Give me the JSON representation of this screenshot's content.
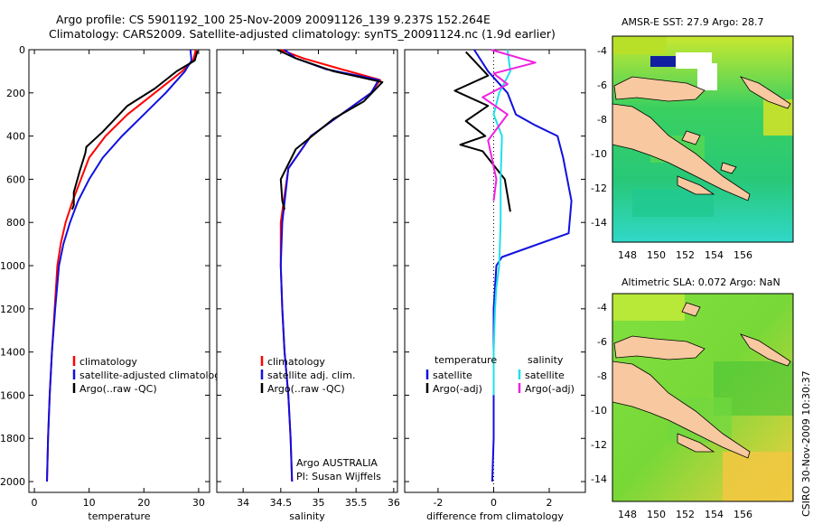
{
  "title": {
    "line1": "Argo profile: CS 5901192_100 25-Nov-2009 20091126_139 9.237S 152.264E",
    "line2": "Climatology: CARS2009. Satellite-adjusted climatology: synTS_20091124.nc (1.9d earlier)"
  },
  "colors": {
    "clim": "#ff0000",
    "sat": "#1010e0",
    "argo": "#000000",
    "sal_sat": "#20e0e8",
    "sal_argo": "#f020e0"
  },
  "chart_data": [
    {
      "type": "line",
      "id": "temperature",
      "xlabel": "temperature",
      "xlim": [
        -1,
        32
      ],
      "ylim": [
        2050,
        0
      ],
      "xticks": [
        "0",
        "10",
        "20",
        "30"
      ],
      "xtick_values": [
        0,
        10,
        20,
        30
      ],
      "yticks": [
        "0",
        "200",
        "400",
        "600",
        "800",
        "1000",
        "1200",
        "1400",
        "1600",
        "1800",
        "2000"
      ],
      "ytick_values": [
        0,
        200,
        400,
        600,
        800,
        1000,
        1200,
        1400,
        1600,
        1800,
        2000
      ],
      "legend": [
        "climatology",
        "satellite-adjusted climatology",
        "Argo(..raw -QC)"
      ],
      "series": [
        {
          "name": "climatology",
          "color": "clim",
          "x": [
            29.5,
            29,
            27,
            22,
            17,
            13,
            10,
            8.5,
            7,
            5.7,
            4.8,
            4.2,
            3.7,
            3.2,
            2.8,
            2.5,
            2.3
          ],
          "y": [
            0,
            50,
            100,
            200,
            300,
            400,
            500,
            600,
            700,
            800,
            900,
            1000,
            1200,
            1400,
            1600,
            1800,
            2000
          ]
        },
        {
          "name": "satellite-adjusted climatology",
          "color": "sat",
          "x": [
            28.5,
            28.7,
            27.5,
            24,
            20,
            16,
            12.5,
            10,
            8,
            6.5,
            5.3,
            4.5,
            3.8,
            3.2,
            2.8,
            2.5,
            2.3
          ],
          "y": [
            0,
            50,
            100,
            200,
            300,
            400,
            500,
            600,
            700,
            800,
            900,
            1000,
            1200,
            1400,
            1600,
            1800,
            2000
          ]
        },
        {
          "name": "Argo(..raw -QC)",
          "color": "argo",
          "x": [
            29.8,
            29.3,
            26,
            22,
            17,
            12.5,
            9.5,
            9.3,
            8.3,
            7.2,
            7.2,
            6.9
          ],
          "y": [
            5,
            50,
            100,
            180,
            260,
            380,
            450,
            480,
            560,
            660,
            720,
            740
          ]
        }
      ]
    },
    {
      "type": "line",
      "id": "salinity",
      "xlabel": "salinity",
      "xlim": [
        33.65,
        36.05
      ],
      "ylim": [
        2050,
        0
      ],
      "xticks": [
        "34",
        "34.5",
        "35",
        "35.5",
        "36"
      ],
      "xtick_values": [
        34,
        34.5,
        35,
        35.5,
        36
      ],
      "yticks": [],
      "ytick_values": [],
      "legend": [
        "climatology",
        "satellite adj. clim.",
        "Argo(..raw -QC)"
      ],
      "annotation": [
        "Argo AUSTRALIA",
        "PI: Susan Wijffels"
      ],
      "series": [
        {
          "name": "climatology",
          "color": "clim",
          "x": [
            34.5,
            34.8,
            35.3,
            35.82,
            35.7,
            35.3,
            34.9,
            34.6,
            34.5,
            34.5,
            34.52,
            34.55,
            34.6,
            34.63,
            34.65
          ],
          "y": [
            0,
            40,
            90,
            140,
            200,
            300,
            400,
            550,
            800,
            1000,
            1200,
            1400,
            1600,
            1800,
            2000
          ]
        },
        {
          "name": "satellite adj. clim.",
          "color": "sat",
          "x": [
            34.55,
            34.7,
            35.1,
            35.8,
            35.7,
            35.3,
            34.9,
            34.6,
            34.52,
            34.5,
            34.52,
            34.55,
            34.6,
            34.63,
            34.65
          ],
          "y": [
            0,
            40,
            90,
            140,
            200,
            300,
            400,
            550,
            800,
            1000,
            1200,
            1400,
            1600,
            1800,
            2000
          ]
        },
        {
          "name": "Argo(..raw -QC)",
          "color": "argo",
          "x": [
            34.45,
            34.7,
            35.2,
            35.85,
            35.6,
            35.2,
            34.7,
            34.5,
            34.52,
            34.55
          ],
          "y": [
            0,
            40,
            100,
            150,
            240,
            320,
            460,
            600,
            700,
            740
          ]
        }
      ]
    },
    {
      "type": "line",
      "id": "difference",
      "xlabel": "difference from climatology",
      "xlim": [
        -3.2,
        3.3
      ],
      "ylim": [
        2050,
        0
      ],
      "xticks": [
        "-2",
        "0",
        "2"
      ],
      "xtick_values": [
        -2,
        0,
        2
      ],
      "yticks": [],
      "ytick_values": [],
      "legend_left_title": "temperature",
      "legend_right_title": "salinity",
      "legend_left": [
        "satellite",
        "Argo(-adj)"
      ],
      "legend_right": [
        "satellite",
        "Argo(-adj)"
      ],
      "series": [
        {
          "name": "temperature satellite",
          "color": "sat",
          "x": [
            -0.7,
            -0.2,
            0.5,
            0.8,
            1.5,
            2.3,
            2.5,
            2.8,
            2.7,
            0.3,
            0.1,
            0.0,
            0.0,
            0.0,
            -0.05
          ],
          "y": [
            0,
            100,
            200,
            300,
            350,
            400,
            500,
            700,
            850,
            960,
            1000,
            1200,
            1400,
            1800,
            2000
          ]
        },
        {
          "name": "temperature Argo(-adj)",
          "color": "argo",
          "x": [
            -1.0,
            -0.2,
            -1.4,
            -0.2,
            -1.0,
            -0.3,
            -1.2,
            -0.4,
            0.4,
            0.6
          ],
          "y": [
            10,
            120,
            190,
            260,
            330,
            400,
            440,
            470,
            600,
            750
          ]
        },
        {
          "name": "salinity satellite",
          "color": "sal_sat",
          "x": [
            0.5,
            0.6,
            0.2,
            0.0,
            0.3,
            0.25,
            0.25,
            0.2,
            0.1,
            0.05,
            0.0,
            0.0
          ],
          "y": [
            0,
            100,
            200,
            300,
            400,
            600,
            800,
            1000,
            1100,
            1200,
            1400,
            1600
          ]
        },
        {
          "name": "salinity Argo(-adj)",
          "color": "sal_argo",
          "x": [
            -0.1,
            1.5,
            0.0,
            0.5,
            -0.4,
            0.5,
            -0.2,
            0.1,
            0.0
          ],
          "y": [
            0,
            60,
            110,
            160,
            220,
            300,
            420,
            600,
            700
          ]
        }
      ]
    }
  ],
  "maps": [
    {
      "title": "AMSR-E SST: 27.9 Argo: 28.7",
      "xticks": [
        "148",
        "150",
        "152",
        "154",
        "156"
      ],
      "yticks": [
        "-4",
        "-6",
        "-8",
        "-10",
        "-12",
        "-14"
      ]
    },
    {
      "title": "Altimetric SLA: 0.072 Argo: NaN",
      "xticks": [
        "148",
        "150",
        "152",
        "154",
        "156"
      ],
      "yticks": [
        "-4",
        "-6",
        "-8",
        "-10",
        "-12",
        "-14"
      ]
    }
  ],
  "footer": "CSIRO 30-Nov-2009 10:30:37"
}
